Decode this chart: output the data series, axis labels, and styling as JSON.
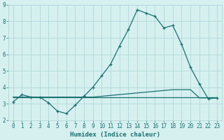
{
  "xlabel": "Humidex (Indice chaleur)",
  "bg_color": "#d6f0f0",
  "grid_color": "#b0d8d8",
  "line_color": "#1a7070",
  "xlim": [
    -0.5,
    23.5
  ],
  "ylim": [
    2,
    9
  ],
  "xticks": [
    0,
    1,
    2,
    3,
    4,
    5,
    6,
    7,
    8,
    9,
    10,
    11,
    12,
    13,
    14,
    15,
    16,
    17,
    18,
    19,
    20,
    21,
    22,
    23
  ],
  "yticks": [
    2,
    3,
    4,
    5,
    6,
    7,
    8,
    9
  ],
  "series1_x": [
    0,
    1,
    2,
    3,
    4,
    5,
    6,
    7,
    8,
    9,
    10,
    11,
    12,
    13,
    14,
    15,
    16,
    17,
    18,
    19,
    20,
    21,
    22,
    23
  ],
  "series1_y": [
    3.1,
    3.55,
    3.4,
    3.4,
    3.05,
    2.55,
    2.4,
    2.9,
    3.45,
    4.0,
    4.7,
    5.4,
    6.5,
    7.5,
    8.7,
    8.5,
    8.3,
    7.6,
    7.75,
    6.6,
    5.2,
    4.2,
    3.3,
    3.35
  ],
  "series2_x": [
    0,
    1,
    2,
    3,
    4,
    5,
    6,
    7,
    8,
    9,
    10,
    11,
    12,
    13,
    14,
    15,
    16,
    17,
    18,
    19,
    20,
    21,
    22,
    23
  ],
  "series2_y": [
    3.4,
    3.4,
    3.4,
    3.4,
    3.4,
    3.4,
    3.4,
    3.4,
    3.4,
    3.4,
    3.45,
    3.5,
    3.55,
    3.6,
    3.65,
    3.7,
    3.75,
    3.8,
    3.85,
    3.85,
    3.85,
    3.35,
    3.35,
    3.35
  ],
  "series3_x": [
    0,
    1,
    2,
    3,
    4,
    5,
    6,
    7,
    8,
    9,
    10,
    11,
    12,
    13,
    14,
    15,
    16,
    17,
    18,
    19,
    20,
    21,
    22,
    23
  ],
  "series3_y": [
    3.4,
    3.4,
    3.4,
    3.4,
    3.4,
    3.4,
    3.4,
    3.4,
    3.4,
    3.4,
    3.4,
    3.4,
    3.4,
    3.4,
    3.4,
    3.4,
    3.4,
    3.4,
    3.4,
    3.4,
    3.4,
    3.4,
    3.4,
    3.4
  ],
  "tick_fontsize": 5.5,
  "xlabel_fontsize": 6.5
}
